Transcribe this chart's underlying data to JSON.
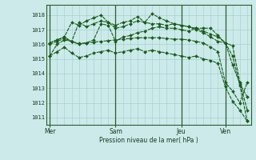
{
  "xlabel": "Pression niveau de la mer( hPa )",
  "bg_color": "#cceaea",
  "grid_color": "#aad4d4",
  "line_color": "#1a5c1a",
  "marker_color": "#1a5c1a",
  "ylim": [
    1010.5,
    1018.7
  ],
  "yticks": [
    1011,
    1012,
    1013,
    1014,
    1015,
    1016,
    1017,
    1018
  ],
  "xtick_labels": [
    "Mer",
    "Sam",
    "Jeu",
    "Ven"
  ],
  "xtick_positions": [
    0,
    9,
    18,
    24
  ],
  "vline_positions": [
    0,
    9,
    18,
    24
  ],
  "lines": [
    [
      1015.2,
      1016.0,
      1016.3,
      1016.2,
      1016.05,
      1016.1,
      1016.15,
      1016.2,
      1016.25,
      1016.3,
      1016.35,
      1016.4,
      1016.45,
      1016.45,
      1016.45,
      1016.45,
      1016.4,
      1016.35,
      1016.35,
      1016.3,
      1016.2,
      1016.1,
      1015.8,
      1015.5,
      1013.4,
      1012.8,
      1012.0,
      1013.4
    ],
    [
      1016.0,
      1016.2,
      1016.4,
      1016.2,
      1016.0,
      1016.1,
      1016.3,
      1017.4,
      1017.3,
      1016.2,
      1016.5,
      1016.6,
      1016.8,
      1016.9,
      1017.1,
      1017.2,
      1017.1,
      1017.1,
      1017.0,
      1016.9,
      1017.1,
      1017.1,
      1017.1,
      1016.6,
      1016.1,
      1015.2,
      1013.2,
      1010.75
    ],
    [
      1016.1,
      1016.3,
      1016.5,
      1016.2,
      1017.5,
      1017.2,
      1017.4,
      1017.6,
      1017.5,
      1017.3,
      1017.5,
      1017.6,
      1017.9,
      1017.5,
      1017.4,
      1017.4,
      1017.3,
      1017.4,
      1017.3,
      1017.2,
      1017.0,
      1016.8,
      1016.5,
      1016.2,
      1016.1,
      1014.6,
      1013.3,
      1012.4
    ],
    [
      1016.1,
      1016.3,
      1016.5,
      1017.5,
      1017.3,
      1017.6,
      1017.8,
      1018.0,
      1017.5,
      1017.1,
      1017.2,
      1017.4,
      1017.6,
      1017.5,
      1018.1,
      1017.8,
      1017.6,
      1017.4,
      1017.3,
      1017.2,
      1017.1,
      1016.9,
      1016.7,
      1016.5,
      1016.1,
      1015.9,
      1013.4,
      1011.5
    ],
    [
      1015.2,
      1015.5,
      1015.8,
      1015.4,
      1015.1,
      1015.2,
      1015.4,
      1015.5,
      1015.6,
      1015.4,
      1015.5,
      1015.6,
      1015.7,
      1015.5,
      1015.6,
      1015.5,
      1015.4,
      1015.3,
      1015.2,
      1015.1,
      1015.2,
      1015.0,
      1014.9,
      1014.7,
      1013.1,
      1012.1,
      1011.5,
      1010.75
    ]
  ],
  "n_points": 28,
  "figwidth": 3.2,
  "figheight": 2.0,
  "dpi": 100
}
